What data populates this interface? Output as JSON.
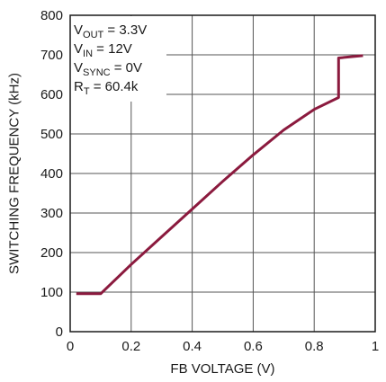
{
  "chart_data": {
    "type": "line",
    "xlabel": "FB VOLTAGE (V)",
    "ylabel": "SWITCHING FREQUENCY (kHz)",
    "xlim": [
      0,
      1
    ],
    "ylim": [
      0,
      800
    ],
    "xticks": [
      0,
      0.2,
      0.4,
      0.6,
      0.8,
      1
    ],
    "xtick_labels": [
      "0",
      "0.2",
      "0.4",
      "0.6",
      "0.8",
      "1"
    ],
    "yticks": [
      0,
      100,
      200,
      300,
      400,
      500,
      600,
      700,
      800
    ],
    "ytick_labels": [
      "0",
      "100",
      "200",
      "300",
      "400",
      "500",
      "600",
      "700",
      "800"
    ],
    "grid": true,
    "series": [
      {
        "color": "#8b1a3e",
        "x": [
          0.02,
          0.1,
          0.2,
          0.3,
          0.4,
          0.5,
          0.6,
          0.7,
          0.8,
          0.88,
          0.88,
          0.96
        ],
        "y": [
          96,
          96,
          170,
          240,
          310,
          380,
          447,
          510,
          562,
          592,
          692,
          698
        ]
      }
    ],
    "annotation": {
      "lines": [
        {
          "main": "V",
          "sub": "OUT",
          "rest": " = 3.3V"
        },
        {
          "main": "V",
          "sub": "IN",
          "rest": " = 12V"
        },
        {
          "main": "V",
          "sub": "SYNC",
          "rest": " = 0V"
        },
        {
          "main": "R",
          "sub": "T",
          "rest": " = 60.4k"
        }
      ]
    }
  }
}
